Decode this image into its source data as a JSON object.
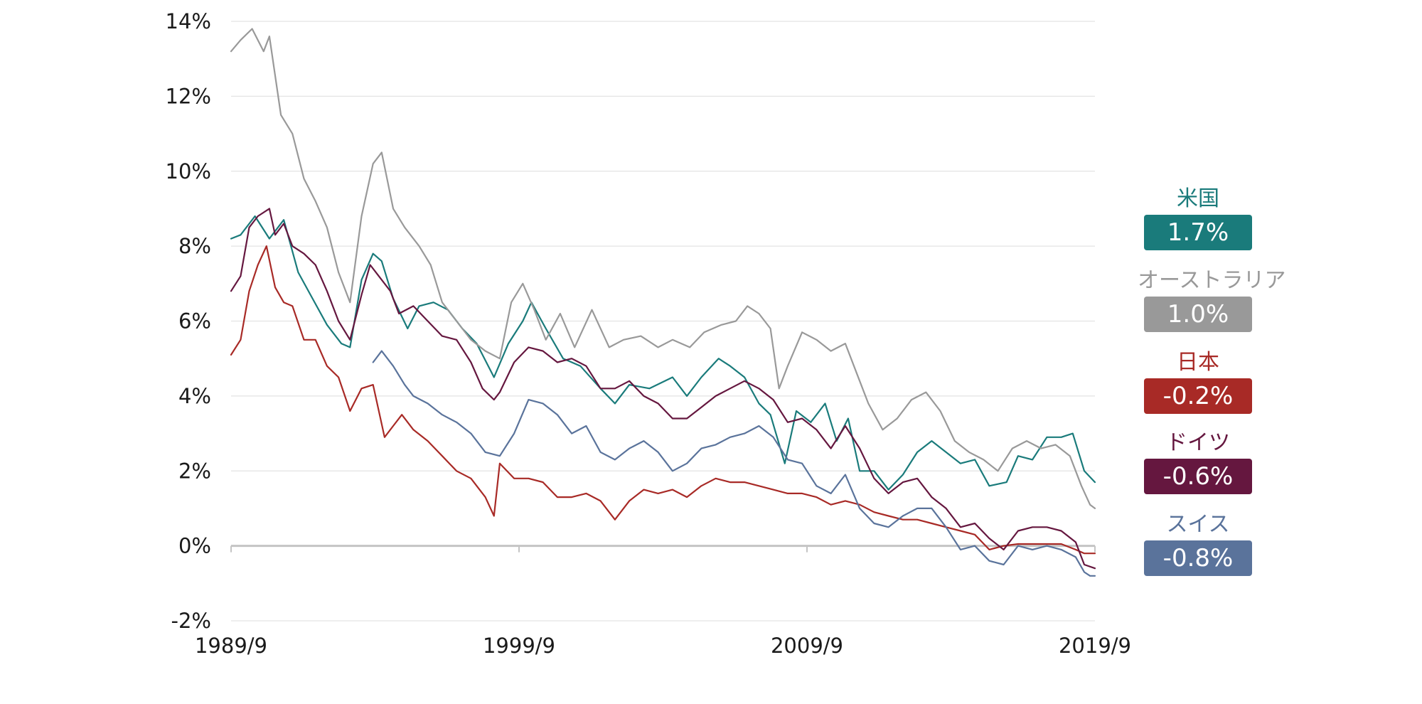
{
  "chart_data": {
    "type": "line",
    "title": "",
    "xlabel": "",
    "ylabel": "",
    "xlim": [
      1989.67,
      2019.67
    ],
    "ylim": [
      -2,
      14
    ],
    "y_ticks": [
      "14%",
      "12%",
      "10%",
      "8%",
      "6%",
      "4%",
      "2%",
      "0%",
      "-2%"
    ],
    "x_ticks": [
      "1989/9",
      "1999/9",
      "2009/9",
      "2019/9"
    ],
    "grid": true,
    "series": [
      {
        "name": "米国",
        "value_label": "1.7%",
        "color": "#1a7b7b",
        "x": [
          1989.67,
          1990.0,
          1990.5,
          1991.0,
          1991.5,
          1992.0,
          1992.5,
          1993.0,
          1993.5,
          1993.8,
          1994.2,
          1994.6,
          1994.9,
          1995.3,
          1995.8,
          1996.2,
          1996.7,
          1997.2,
          1997.7,
          1998.2,
          1998.8,
          1999.3,
          1999.8,
          2000.1,
          2000.6,
          2001.2,
          2001.8,
          2002.5,
          2003.0,
          2003.5,
          2004.2,
          2005.0,
          2005.5,
          2006.0,
          2006.6,
          2007.0,
          2007.5,
          2008.0,
          2008.4,
          2008.9,
          2009.3,
          2009.8,
          2010.3,
          2010.7,
          2011.1,
          2011.5,
          2012.0,
          2012.5,
          2013.0,
          2013.5,
          2014.0,
          2014.5,
          2015.0,
          2015.5,
          2016.0,
          2016.6,
          2017.0,
          2017.5,
          2018.0,
          2018.5,
          2018.9,
          2019.3,
          2019.67
        ],
        "y": [
          8.2,
          8.3,
          8.8,
          8.2,
          8.7,
          7.3,
          6.6,
          5.9,
          5.4,
          5.3,
          7.1,
          7.8,
          7.6,
          6.6,
          5.8,
          6.4,
          6.5,
          6.3,
          5.8,
          5.4,
          4.5,
          5.4,
          6.0,
          6.5,
          5.8,
          5.0,
          4.8,
          4.2,
          3.8,
          4.3,
          4.2,
          4.5,
          4.0,
          4.5,
          5.0,
          4.8,
          4.5,
          3.8,
          3.5,
          2.2,
          3.6,
          3.3,
          3.8,
          2.8,
          3.4,
          2.0,
          2.0,
          1.5,
          1.9,
          2.5,
          2.8,
          2.5,
          2.2,
          2.3,
          1.6,
          1.7,
          2.4,
          2.3,
          2.9,
          2.9,
          3.0,
          2.0,
          1.7
        ]
      },
      {
        "name": "オーストラリア",
        "value_label": "1.0%",
        "color": "#999999",
        "x": [
          1989.67,
          1990.0,
          1990.4,
          1990.8,
          1991.0,
          1991.4,
          1991.8,
          1992.2,
          1992.6,
          1993.0,
          1993.4,
          1993.8,
          1994.2,
          1994.6,
          1994.9,
          1995.3,
          1995.7,
          1996.2,
          1996.6,
          1997.0,
          1997.5,
          1998.0,
          1998.5,
          1999.0,
          1999.4,
          1999.8,
          2000.2,
          2000.6,
          2001.1,
          2001.6,
          2002.2,
          2002.8,
          2003.3,
          2003.9,
          2004.5,
          2005.0,
          2005.6,
          2006.1,
          2006.7,
          2007.2,
          2007.6,
          2008.0,
          2008.4,
          2008.7,
          2009.0,
          2009.5,
          2010.0,
          2010.5,
          2011.0,
          2011.4,
          2011.8,
          2012.3,
          2012.8,
          2013.3,
          2013.8,
          2014.3,
          2014.8,
          2015.3,
          2015.8,
          2016.3,
          2016.8,
          2017.3,
          2017.8,
          2018.3,
          2018.8,
          2019.2,
          2019.5,
          2019.67
        ],
        "y": [
          13.2,
          13.5,
          13.8,
          13.2,
          13.6,
          11.5,
          11.0,
          9.8,
          9.2,
          8.5,
          7.3,
          6.5,
          8.8,
          10.2,
          10.5,
          9.0,
          8.5,
          8.0,
          7.5,
          6.5,
          6.0,
          5.5,
          5.2,
          5.0,
          6.5,
          7.0,
          6.3,
          5.5,
          6.2,
          5.3,
          6.3,
          5.3,
          5.5,
          5.6,
          5.3,
          5.5,
          5.3,
          5.7,
          5.9,
          6.0,
          6.4,
          6.2,
          5.8,
          4.2,
          4.8,
          5.7,
          5.5,
          5.2,
          5.4,
          4.6,
          3.8,
          3.1,
          3.4,
          3.9,
          4.1,
          3.6,
          2.8,
          2.5,
          2.3,
          2.0,
          2.6,
          2.8,
          2.6,
          2.7,
          2.4,
          1.6,
          1.1,
          1.0
        ]
      },
      {
        "name": "日本",
        "value_label": "-0.2%",
        "color": "#a82a26",
        "x": [
          1989.67,
          1990.0,
          1990.3,
          1990.6,
          1990.9,
          1991.2,
          1991.5,
          1991.8,
          1992.2,
          1992.6,
          1993.0,
          1993.4,
          1993.8,
          1994.2,
          1994.6,
          1995.0,
          1995.3,
          1995.6,
          1996.0,
          1996.5,
          1997.0,
          1997.5,
          1998.0,
          1998.5,
          1998.8,
          1999.0,
          1999.5,
          2000.0,
          2000.5,
          2001.0,
          2001.5,
          2002.0,
          2002.5,
          2003.0,
          2003.5,
          2004.0,
          2004.5,
          2005.0,
          2005.5,
          2006.0,
          2006.5,
          2007.0,
          2007.5,
          2008.0,
          2008.5,
          2009.0,
          2009.5,
          2010.0,
          2010.5,
          2011.0,
          2011.5,
          2012.0,
          2012.5,
          2013.0,
          2013.5,
          2014.0,
          2014.5,
          2015.0,
          2015.5,
          2016.0,
          2016.5,
          2017.0,
          2017.5,
          2018.0,
          2018.5,
          2019.0,
          2019.3,
          2019.67
        ],
        "y": [
          5.1,
          5.5,
          6.8,
          7.5,
          8.0,
          6.9,
          6.5,
          6.4,
          5.5,
          5.5,
          4.8,
          4.5,
          3.6,
          4.2,
          4.3,
          2.9,
          3.2,
          3.5,
          3.1,
          2.8,
          2.4,
          2.0,
          1.8,
          1.3,
          0.8,
          2.2,
          1.8,
          1.8,
          1.7,
          1.3,
          1.3,
          1.4,
          1.2,
          0.7,
          1.2,
          1.5,
          1.4,
          1.5,
          1.3,
          1.6,
          1.8,
          1.7,
          1.7,
          1.6,
          1.5,
          1.4,
          1.4,
          1.3,
          1.1,
          1.2,
          1.1,
          0.9,
          0.8,
          0.7,
          0.7,
          0.6,
          0.5,
          0.4,
          0.3,
          -0.1,
          0.0,
          0.05,
          0.05,
          0.05,
          0.05,
          -0.1,
          -0.2,
          -0.2
        ]
      },
      {
        "name": "ドイツ",
        "value_label": "-0.6%",
        "color": "#65173f",
        "x": [
          1989.67,
          1990.0,
          1990.3,
          1990.6,
          1991.0,
          1991.2,
          1991.5,
          1991.8,
          1992.2,
          1992.6,
          1993.0,
          1993.4,
          1993.8,
          1994.2,
          1994.5,
          1994.8,
          1995.2,
          1995.5,
          1996.0,
          1996.5,
          1997.0,
          1997.5,
          1998.0,
          1998.4,
          1998.8,
          1999.0,
          1999.5,
          2000.0,
          2000.5,
          2001.0,
          2001.5,
          2002.0,
          2002.5,
          2003.0,
          2003.5,
          2004.0,
          2004.5,
          2005.0,
          2005.5,
          2006.0,
          2006.5,
          2007.0,
          2007.5,
          2008.0,
          2008.5,
          2009.0,
          2009.5,
          2010.0,
          2010.5,
          2011.0,
          2011.5,
          2012.0,
          2012.5,
          2013.0,
          2013.5,
          2014.0,
          2014.5,
          2015.0,
          2015.5,
          2016.0,
          2016.5,
          2017.0,
          2017.5,
          2018.0,
          2018.5,
          2019.0,
          2019.3,
          2019.67
        ],
        "y": [
          6.8,
          7.2,
          8.5,
          8.8,
          9.0,
          8.3,
          8.6,
          8.0,
          7.8,
          7.5,
          6.8,
          6.0,
          5.5,
          6.7,
          7.5,
          7.2,
          6.8,
          6.2,
          6.4,
          6.0,
          5.6,
          5.5,
          4.9,
          4.2,
          3.9,
          4.1,
          4.9,
          5.3,
          5.2,
          4.9,
          5.0,
          4.8,
          4.2,
          4.2,
          4.4,
          4.0,
          3.8,
          3.4,
          3.4,
          3.7,
          4.0,
          4.2,
          4.4,
          4.2,
          3.9,
          3.3,
          3.4,
          3.1,
          2.6,
          3.2,
          2.6,
          1.8,
          1.4,
          1.7,
          1.8,
          1.3,
          1.0,
          0.5,
          0.6,
          0.2,
          -0.1,
          0.4,
          0.5,
          0.5,
          0.4,
          0.1,
          -0.5,
          -0.6
        ]
      },
      {
        "name": "スイス",
        "value_label": "-0.8%",
        "color": "#5a739b",
        "x": [
          1994.6,
          1994.9,
          1995.3,
          1995.7,
          1996.0,
          1996.5,
          1997.0,
          1997.5,
          1998.0,
          1998.5,
          1999.0,
          1999.5,
          2000.0,
          2000.5,
          2001.0,
          2001.5,
          2002.0,
          2002.5,
          2003.0,
          2003.5,
          2004.0,
          2004.5,
          2005.0,
          2005.5,
          2006.0,
          2006.5,
          2007.0,
          2007.5,
          2008.0,
          2008.5,
          2009.0,
          2009.5,
          2010.0,
          2010.5,
          2011.0,
          2011.5,
          2012.0,
          2012.5,
          2013.0,
          2013.5,
          2014.0,
          2014.5,
          2015.0,
          2015.5,
          2016.0,
          2016.5,
          2017.0,
          2017.5,
          2018.0,
          2018.5,
          2019.0,
          2019.3,
          2019.5,
          2019.67
        ],
        "y": [
          4.9,
          5.2,
          4.8,
          4.3,
          4.0,
          3.8,
          3.5,
          3.3,
          3.0,
          2.5,
          2.4,
          3.0,
          3.9,
          3.8,
          3.5,
          3.0,
          3.2,
          2.5,
          2.3,
          2.6,
          2.8,
          2.5,
          2.0,
          2.2,
          2.6,
          2.7,
          2.9,
          3.0,
          3.2,
          2.9,
          2.3,
          2.2,
          1.6,
          1.4,
          1.9,
          1.0,
          0.6,
          0.5,
          0.8,
          1.0,
          1.0,
          0.5,
          -0.1,
          0.0,
          -0.4,
          -0.5,
          0.0,
          -0.1,
          0.0,
          -0.1,
          -0.3,
          -0.7,
          -0.8,
          -0.8
        ]
      }
    ]
  }
}
